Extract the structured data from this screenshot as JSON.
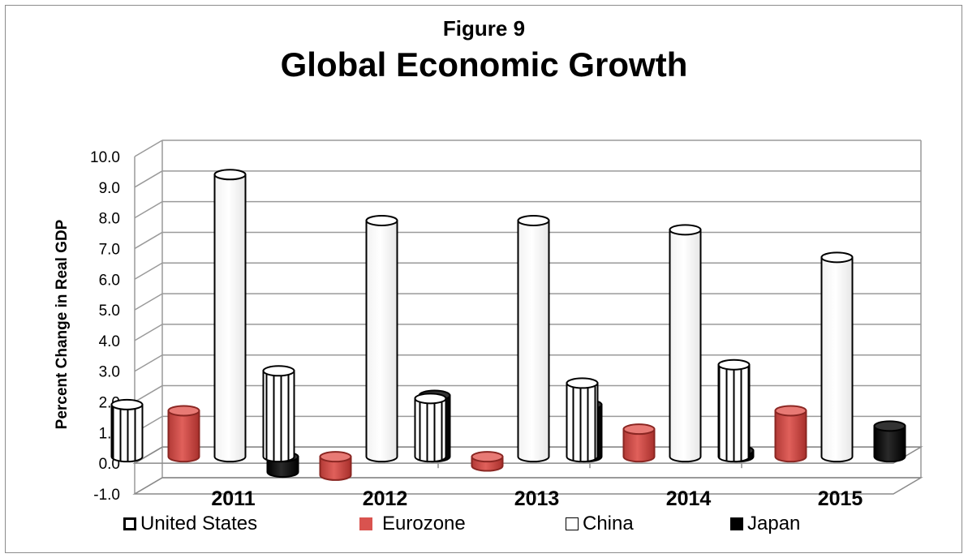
{
  "figure_label": "Figure 9",
  "title": "Global Economic Growth",
  "chart_data": {
    "type": "bar",
    "title": "Global Economic Growth",
    "subtitle": "Figure 9",
    "xlabel": "",
    "ylabel": "Percent Change in Real GDP",
    "categories": [
      "2011",
      "2012",
      "2013",
      "2014",
      "2015"
    ],
    "ylim": [
      -1.0,
      10.0
    ],
    "yticks": [
      "-1.0",
      "0.0",
      "1.0",
      "2.0",
      "3.0",
      "4.0",
      "5.0",
      "6.0",
      "7.0",
      "8.0",
      "9.0",
      "10.0"
    ],
    "grid": true,
    "legend_position": "bottom",
    "series": [
      {
        "name": "United States",
        "values": [
          1.7,
          2.8,
          1.9,
          2.4,
          3.0
        ],
        "color": "#ffffff",
        "style": "vertical-stripes"
      },
      {
        "name": "Eurozone",
        "values": [
          1.5,
          -0.6,
          -0.3,
          0.9,
          1.5
        ],
        "color": "#d9534f",
        "style": "solid"
      },
      {
        "name": "China",
        "values": [
          9.2,
          7.7,
          7.7,
          7.4,
          6.5
        ],
        "color": "#ffffff",
        "style": "solid"
      },
      {
        "name": "Japan",
        "values": [
          -0.5,
          2.0,
          1.7,
          0.2,
          1.0
        ],
        "color": "#000000",
        "style": "solid"
      }
    ]
  }
}
